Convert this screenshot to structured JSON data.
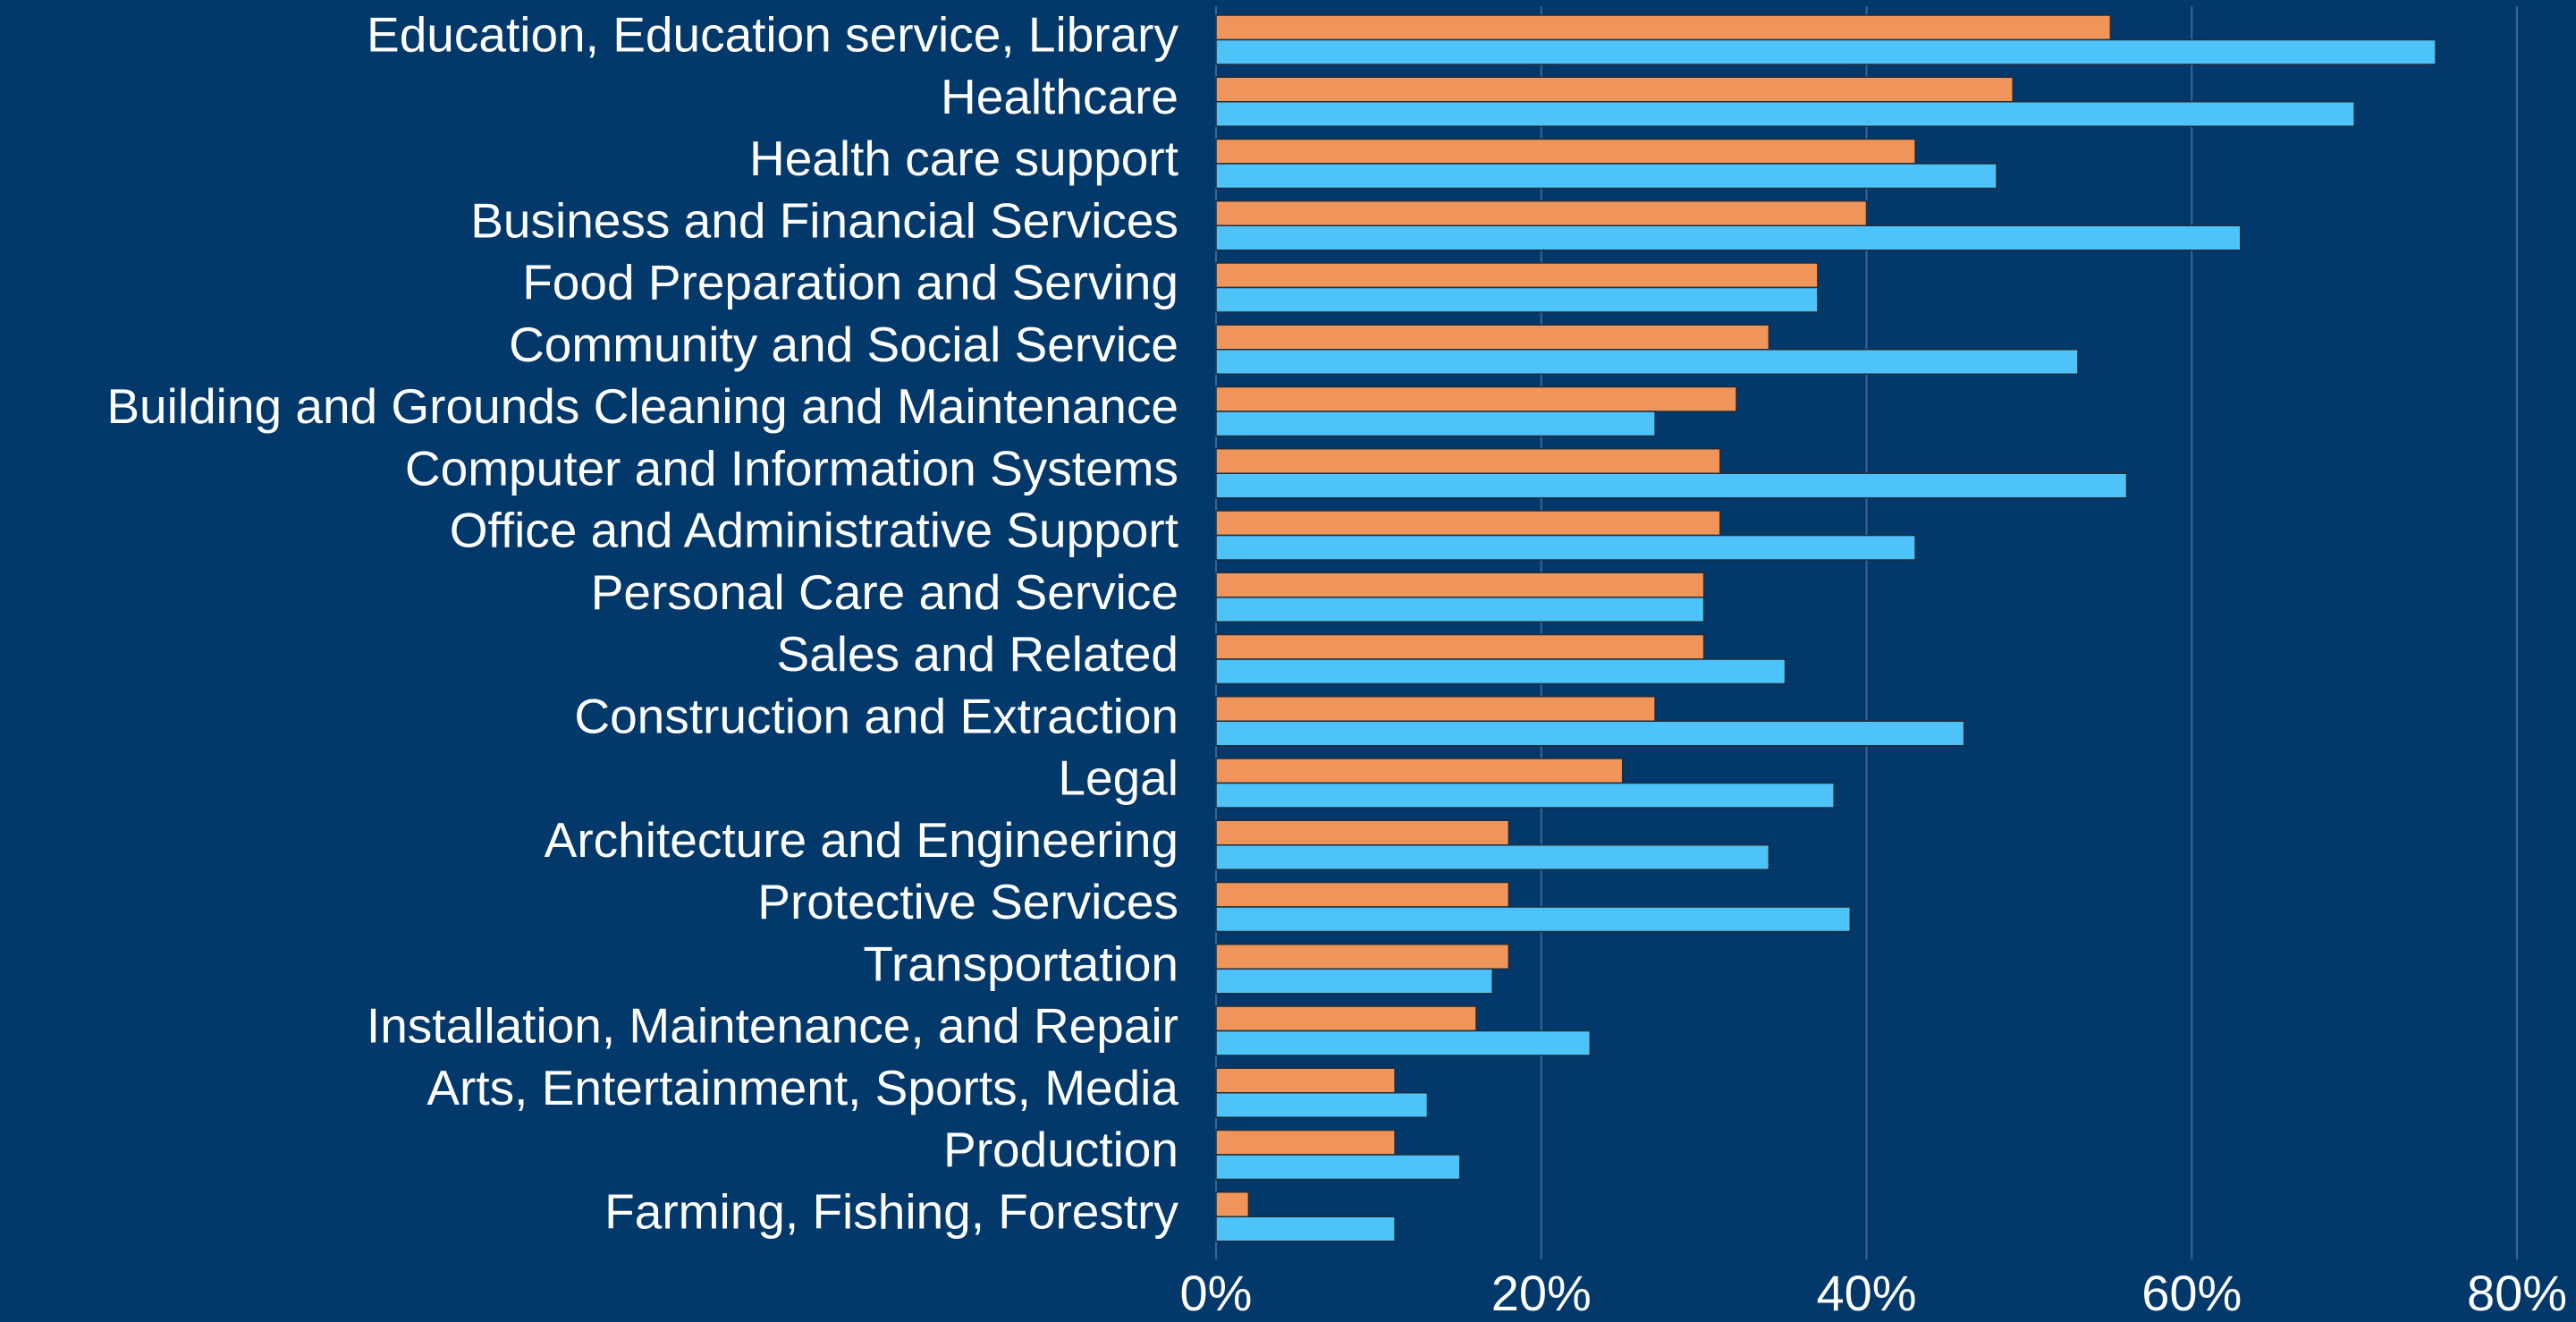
{
  "chart_data": {
    "type": "hbar",
    "categories": [
      "Education, Education service, Library",
      "Healthcare",
      "Health care support",
      "Business and Financial Services",
      "Food Preparation and Serving",
      "Community and Social Service",
      "Building and Grounds Cleaning and Maintenance",
      "Computer and Information Systems",
      "Office and Administrative Support",
      "Personal Care and Service",
      "Sales and Related",
      "Construction and Extraction",
      "Legal",
      "Architecture and Engineering",
      "Protective Services",
      "Transportation",
      "Installation, Maintenance, and Repair",
      "Arts, Entertainment, Sports, Media",
      "Production",
      "Farming, Fishing, Forestry"
    ],
    "series": [
      {
        "color": "#f0955a",
        "values": [
          55,
          49,
          43,
          40,
          37,
          34,
          32,
          31,
          31,
          30,
          30,
          27,
          25,
          18,
          18,
          18,
          16,
          11,
          11,
          2
        ]
      },
      {
        "color": "#4dc3fa",
        "values": [
          75,
          70,
          48,
          63,
          37,
          53,
          27,
          56,
          43,
          30,
          35,
          46,
          38,
          34,
          39,
          17,
          23,
          13,
          15,
          11
        ]
      }
    ],
    "xlim": [
      0,
      80
    ],
    "xticks": [
      {
        "value": 0,
        "label": "0%"
      },
      {
        "value": 20,
        "label": "20%"
      },
      {
        "value": 40,
        "label": "40%"
      },
      {
        "value": 60,
        "label": "60%"
      },
      {
        "value": 80,
        "label": "80%"
      }
    ],
    "grid": true
  }
}
